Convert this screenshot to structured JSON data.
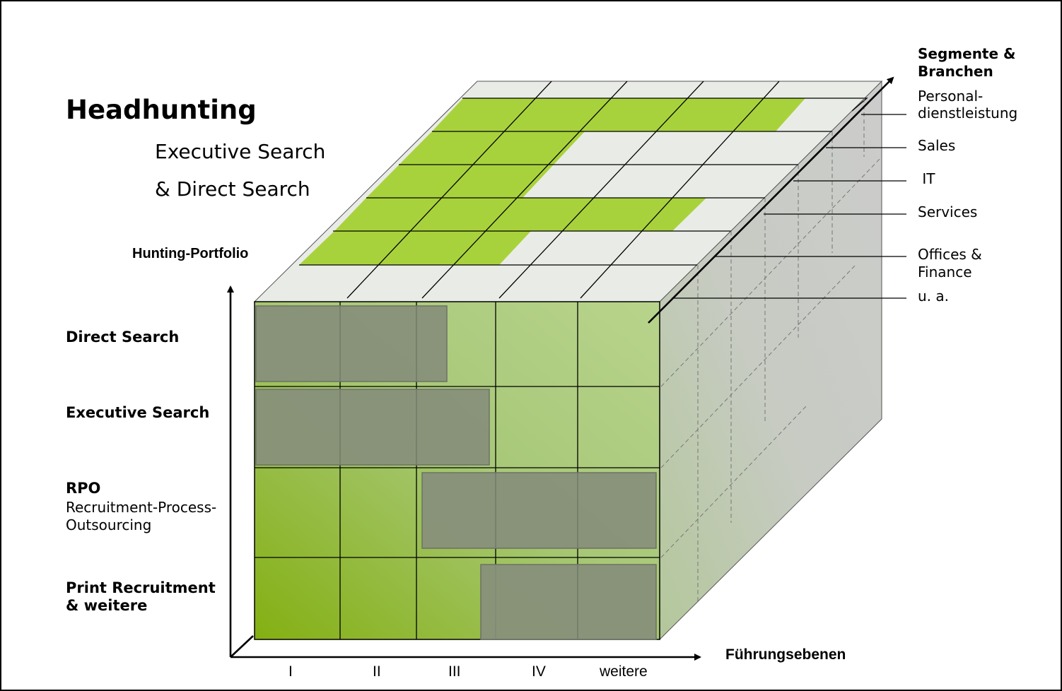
{
  "title": "Headhunting",
  "subtitle": {
    "line1": "Executive Search",
    "line2": "& Direct Search"
  },
  "y_axis": {
    "label": "Hunting-Portfolio",
    "rows": [
      {
        "title": "Direct Search",
        "desc1": "",
        "desc2": ""
      },
      {
        "title": "Executive Search",
        "desc1": "",
        "desc2": ""
      },
      {
        "title": "RPO",
        "desc1": "Recruitment-Process-",
        "desc2": "Outsourcing"
      },
      {
        "title": "Print Recruitment",
        "title2": "& weitere",
        "desc1": "",
        "desc2": ""
      }
    ]
  },
  "x_axis": {
    "label": "Führungsebenen",
    "ticks": [
      "I",
      "II",
      "III",
      "IV",
      "weitere"
    ]
  },
  "depth_axis": {
    "label_line1": "Segmente &",
    "label_line2": "Branchen",
    "segments": [
      {
        "line1": "Personal-",
        "line2": "dienstleistung"
      },
      {
        "line1": "Sales",
        "line2": ""
      },
      {
        "line1": " IT",
        "line2": ""
      },
      {
        "line1": "Services",
        "line2": ""
      },
      {
        "line1": "Offices &",
        "line2": "Finance"
      },
      {
        "line1": "u. a.",
        "line2": ""
      }
    ]
  },
  "colors": {
    "green_light": "#b8d48c",
    "green_dark": "#84b012",
    "top_green": "#a8d23c",
    "top_grey": "#e9ece6",
    "side_grey": "#c9cbc6",
    "overlay_grey": "#87907a"
  }
}
